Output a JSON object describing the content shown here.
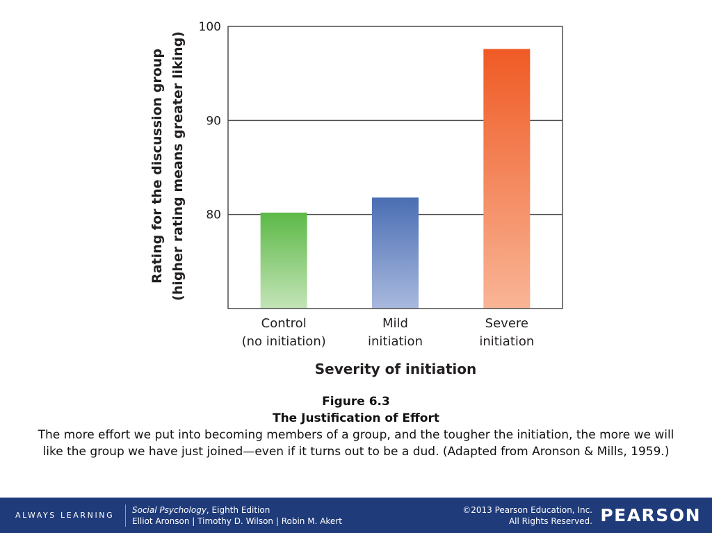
{
  "chart_data": {
    "type": "bar",
    "categories": [
      [
        "Control",
        "(no initiation)"
      ],
      [
        "Mild",
        "initiation"
      ],
      [
        "Severe",
        "initiation"
      ]
    ],
    "values": [
      80.2,
      81.8,
      97.6
    ],
    "xlabel": "Severity of initiation",
    "ylabel": [
      "Rating for the discussion group",
      "(higher rating means greater liking)"
    ],
    "ylim": [
      70,
      100
    ],
    "yticks": [
      80,
      90,
      100
    ],
    "grid": true,
    "bar_colors": [
      {
        "top": "#5cb947",
        "bottom": "#c4e4b7"
      },
      {
        "top": "#4a6eb3",
        "bottom": "#a9b9de"
      },
      {
        "top": "#ef5a24",
        "bottom": "#f9b596"
      }
    ]
  },
  "caption": {
    "figure": "Figure 6.3",
    "title": "The Justification of Effort",
    "text": "The more effort we put into becoming members of a group, and the tougher the initiation, the more we will like the group we have just joined—even if it turns out to be a dud. (Adapted from Aronson & Mills, 1959.)"
  },
  "footer": {
    "tagline": "ALWAYS LEARNING",
    "book_title": "Social Psychology",
    "book_edition": ", Eighth Edition",
    "authors": "Elliot Aronson | Timothy D. Wilson | Robin M. Akert",
    "copyright": "©2013 Pearson Education, Inc.",
    "rights": "All Rights Reserved.",
    "brand": "PEARSON",
    "background": "#1f3b7a"
  }
}
